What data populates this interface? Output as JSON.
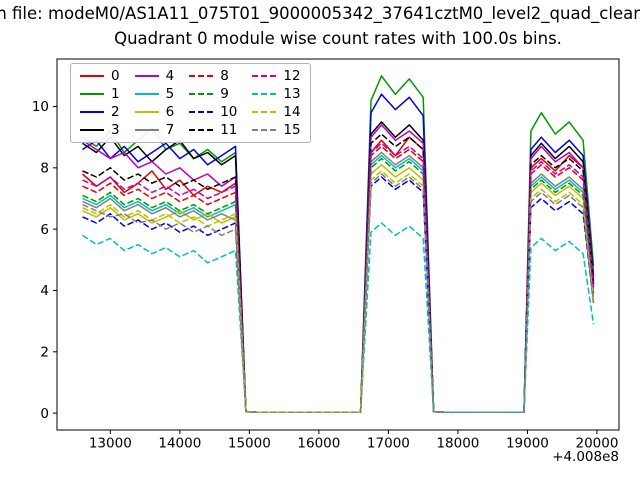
{
  "figure": {
    "suptitle": "n file: modeM0/AS1A11_075T01_9000005342_37641cztM0_level2_quad_clean",
    "background": "#ffffff"
  },
  "chart_data": {
    "type": "line",
    "title": "Quadrant 0 module wise count rates with 100.0s bins.",
    "xlabel": "",
    "ylabel": "",
    "x_offset_label": "+4.008e8",
    "xlim": [
      12233,
      20317
    ],
    "ylim": [
      -0.55,
      11.55
    ],
    "x_ticks": [
      13000,
      14000,
      15000,
      16000,
      17000,
      18000,
      19000,
      20000
    ],
    "y_ticks": [
      0,
      2,
      4,
      6,
      8,
      10
    ],
    "grid": false,
    "legend_position": "upper-left",
    "legend_columns": 4,
    "x": [
      12600,
      12800,
      13000,
      13200,
      13400,
      13600,
      13800,
      14000,
      14200,
      14400,
      14600,
      14800,
      14950,
      15100,
      16600,
      16750,
      16900,
      17100,
      17300,
      17500,
      17650,
      17800,
      18950,
      19050,
      19200,
      19400,
      19600,
      19800,
      19950
    ],
    "series": [
      {
        "name": "0",
        "color": "#e60000",
        "dash": false,
        "values": [
          7.8,
          7.4,
          7.7,
          7.2,
          7.5,
          7.9,
          7.3,
          7.6,
          7.1,
          7.4,
          7.2,
          7.5,
          0.05,
          0.03,
          0.03,
          8.5,
          8.9,
          8.4,
          9.0,
          8.6,
          0.05,
          0.03,
          0.03,
          8.0,
          8.3,
          7.9,
          8.4,
          8.0,
          4.2
        ]
      },
      {
        "name": "1",
        "color": "#009900",
        "dash": false,
        "values": [
          9.0,
          8.7,
          9.2,
          8.5,
          8.9,
          9.3,
          8.6,
          8.8,
          8.3,
          8.6,
          8.2,
          8.5,
          0.05,
          0.03,
          0.03,
          10.2,
          11.0,
          10.4,
          10.9,
          10.3,
          0.05,
          0.03,
          0.03,
          9.2,
          9.8,
          9.1,
          9.5,
          8.9,
          4.8
        ]
      },
      {
        "name": "2",
        "color": "#0000e6",
        "dash": false,
        "values": [
          8.6,
          8.9,
          8.3,
          8.7,
          8.2,
          8.5,
          8.8,
          8.3,
          8.6,
          8.1,
          8.4,
          8.7,
          0.05,
          0.03,
          0.03,
          9.8,
          10.4,
          9.9,
          10.3,
          9.7,
          0.05,
          0.03,
          0.03,
          8.6,
          9.0,
          8.5,
          8.9,
          8.4,
          4.5
        ]
      },
      {
        "name": "3",
        "color": "#000000",
        "dash": false,
        "values": [
          8.8,
          8.5,
          9.0,
          8.4,
          8.7,
          8.2,
          8.6,
          8.9,
          8.3,
          8.5,
          8.1,
          8.4,
          0.05,
          0.03,
          0.03,
          9.1,
          9.5,
          9.0,
          9.4,
          8.9,
          0.05,
          0.03,
          0.03,
          8.4,
          8.8,
          8.3,
          8.7,
          8.2,
          4.4
        ]
      },
      {
        "name": "4",
        "color": "#bf00bf",
        "dash": false,
        "values": [
          8.9,
          8.6,
          8.3,
          8.5,
          8.0,
          8.2,
          7.8,
          8.0,
          7.6,
          7.8,
          7.4,
          7.7,
          0.05,
          0.03,
          0.03,
          9.0,
          9.4,
          8.9,
          9.2,
          8.8,
          0.05,
          0.03,
          0.03,
          8.3,
          8.7,
          8.2,
          8.5,
          8.0,
          4.3
        ]
      },
      {
        "name": "5",
        "color": "#00bfbf",
        "dash": false,
        "values": [
          7.0,
          6.8,
          7.1,
          6.7,
          6.9,
          6.6,
          6.8,
          6.5,
          6.7,
          6.4,
          6.6,
          6.8,
          0.05,
          0.03,
          0.03,
          8.1,
          8.4,
          8.0,
          8.3,
          7.9,
          0.05,
          0.03,
          0.03,
          7.4,
          7.7,
          7.3,
          7.6,
          7.2,
          3.9
        ]
      },
      {
        "name": "6",
        "color": "#bfbf00",
        "dash": false,
        "values": [
          6.6,
          6.4,
          6.7,
          6.3,
          6.5,
          6.2,
          6.4,
          6.6,
          6.3,
          6.5,
          6.2,
          6.4,
          0.05,
          0.03,
          0.03,
          7.8,
          8.1,
          7.7,
          8.0,
          7.6,
          0.05,
          0.03,
          0.03,
          7.2,
          7.5,
          7.1,
          7.4,
          7.0,
          3.8
        ]
      },
      {
        "name": "7",
        "color": "#808080",
        "dash": false,
        "values": [
          6.9,
          6.7,
          7.0,
          6.6,
          6.8,
          6.5,
          6.7,
          6.4,
          6.6,
          6.3,
          6.5,
          6.3,
          0.05,
          0.03,
          0.03,
          8.2,
          8.5,
          8.1,
          8.4,
          8.0,
          0.05,
          0.03,
          0.03,
          7.5,
          7.8,
          7.4,
          7.7,
          7.3,
          3.9
        ]
      },
      {
        "name": "8",
        "color": "#e60000",
        "dash": true,
        "values": [
          7.4,
          7.2,
          7.5,
          7.1,
          7.3,
          7.0,
          7.2,
          6.9,
          7.1,
          6.8,
          7.0,
          7.2,
          0.05,
          0.03,
          0.03,
          8.4,
          8.7,
          8.3,
          8.6,
          8.2,
          0.05,
          0.03,
          0.03,
          7.8,
          8.1,
          7.7,
          8.0,
          7.6,
          4.1
        ]
      },
      {
        "name": "9",
        "color": "#009900",
        "dash": true,
        "values": [
          7.1,
          6.9,
          7.2,
          6.8,
          7.0,
          6.7,
          6.9,
          6.6,
          6.8,
          6.5,
          6.7,
          6.9,
          0.05,
          0.03,
          0.03,
          8.0,
          8.3,
          7.9,
          8.2,
          7.8,
          0.05,
          0.03,
          0.03,
          7.3,
          7.6,
          7.2,
          7.5,
          7.1,
          3.9
        ]
      },
      {
        "name": "10",
        "color": "#0000e6",
        "dash": true,
        "values": [
          6.4,
          6.2,
          6.5,
          6.1,
          6.3,
          6.0,
          6.2,
          5.9,
          6.1,
          5.8,
          6.0,
          6.2,
          0.05,
          0.03,
          0.03,
          7.4,
          7.7,
          7.3,
          7.6,
          7.2,
          0.05,
          0.03,
          0.03,
          6.7,
          7.0,
          6.6,
          6.9,
          6.5,
          3.6
        ]
      },
      {
        "name": "11",
        "color": "#000000",
        "dash": true,
        "values": [
          7.9,
          7.7,
          8.0,
          7.6,
          7.8,
          7.5,
          7.7,
          7.4,
          7.6,
          7.3,
          7.5,
          7.7,
          0.05,
          0.03,
          0.03,
          8.8,
          9.1,
          8.7,
          9.0,
          8.6,
          0.05,
          0.03,
          0.03,
          8.1,
          8.4,
          8.0,
          8.3,
          7.9,
          4.2
        ]
      },
      {
        "name": "12",
        "color": "#bf00bf",
        "dash": true,
        "values": [
          7.6,
          7.4,
          7.7,
          7.3,
          7.5,
          7.2,
          7.4,
          7.1,
          7.3,
          7.0,
          7.2,
          7.4,
          0.05,
          0.03,
          0.03,
          8.5,
          8.8,
          8.4,
          8.7,
          8.3,
          0.05,
          0.03,
          0.03,
          7.9,
          8.2,
          7.8,
          8.1,
          7.7,
          4.1
        ]
      },
      {
        "name": "13",
        "color": "#00bfbf",
        "dash": true,
        "values": [
          5.8,
          5.5,
          5.7,
          5.3,
          5.5,
          5.2,
          5.4,
          5.1,
          5.3,
          4.9,
          5.1,
          5.3,
          0.05,
          0.03,
          0.03,
          5.9,
          6.2,
          5.8,
          6.1,
          5.7,
          0.05,
          0.03,
          0.03,
          5.4,
          5.7,
          5.3,
          5.6,
          5.2,
          2.9
        ]
      },
      {
        "name": "14",
        "color": "#bfbf00",
        "dash": true,
        "values": [
          6.7,
          6.5,
          6.8,
          6.4,
          6.6,
          6.3,
          6.5,
          6.2,
          6.4,
          6.1,
          6.3,
          6.5,
          0.05,
          0.03,
          0.03,
          7.6,
          7.9,
          7.5,
          7.8,
          7.4,
          0.05,
          0.03,
          0.03,
          7.0,
          7.3,
          6.9,
          7.2,
          6.8,
          3.7
        ]
      },
      {
        "name": "15",
        "color": "#808080",
        "dash": true,
        "values": [
          6.8,
          6.6,
          6.4,
          6.5,
          6.2,
          6.3,
          6.0,
          6.2,
          5.9,
          6.1,
          5.8,
          6.0,
          0.05,
          0.03,
          0.03,
          7.5,
          7.8,
          7.4,
          7.7,
          7.3,
          0.05,
          0.03,
          0.03,
          6.9,
          7.2,
          6.8,
          7.1,
          6.7,
          3.6
        ]
      }
    ]
  }
}
